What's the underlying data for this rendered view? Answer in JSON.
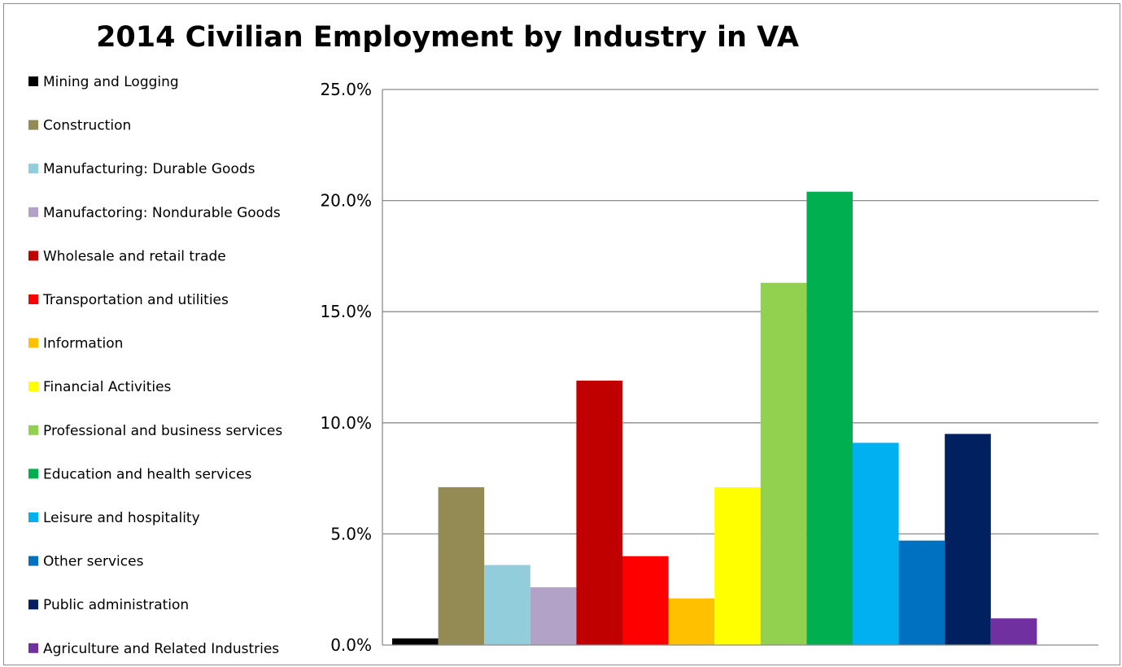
{
  "chart_data": {
    "type": "bar",
    "title": "2014 Civilian Employment by Industry in VA",
    "xlabel": "",
    "ylabel": "",
    "ylim": [
      0,
      25
    ],
    "y_ticks": [
      "0.0%",
      "5.0%",
      "10.0%",
      "15.0%",
      "20.0%",
      "25.0%"
    ],
    "y_tick_values": [
      0,
      5,
      10,
      15,
      20,
      25
    ],
    "grid": true,
    "legend_position": "left",
    "series": [
      {
        "name": "Mining and Logging",
        "value": 0.3,
        "color": "#000000"
      },
      {
        "name": "Construction",
        "value": 7.1,
        "color": "#948A54"
      },
      {
        "name": "Manufacturing: Durable Goods",
        "value": 3.6,
        "color": "#92CDDC"
      },
      {
        "name": "Manufactoring: Nondurable Goods",
        "value": 2.6,
        "color": "#B2A2C7"
      },
      {
        "name": "Wholesale and retail trade",
        "value": 11.9,
        "color": "#C00000"
      },
      {
        "name": "Transportation and utilities",
        "value": 4.0,
        "color": "#FF0000"
      },
      {
        "name": "Information",
        "value": 2.1,
        "color": "#FFC000"
      },
      {
        "name": "Financial Activities",
        "value": 7.1,
        "color": "#FFFF00"
      },
      {
        "name": "Professional and business services",
        "value": 16.3,
        "color": "#92D050"
      },
      {
        "name": "Education and health services",
        "value": 20.4,
        "color": "#00B050"
      },
      {
        "name": "Leisure and hospitality",
        "value": 9.1,
        "color": "#00B0F0"
      },
      {
        "name": "Other services",
        "value": 4.7,
        "color": "#0070C0"
      },
      {
        "name": "Public administration",
        "value": 9.5,
        "color": "#002060"
      },
      {
        "name": "Agriculture and Related Industries",
        "value": 1.2,
        "color": "#7030A0"
      }
    ]
  }
}
